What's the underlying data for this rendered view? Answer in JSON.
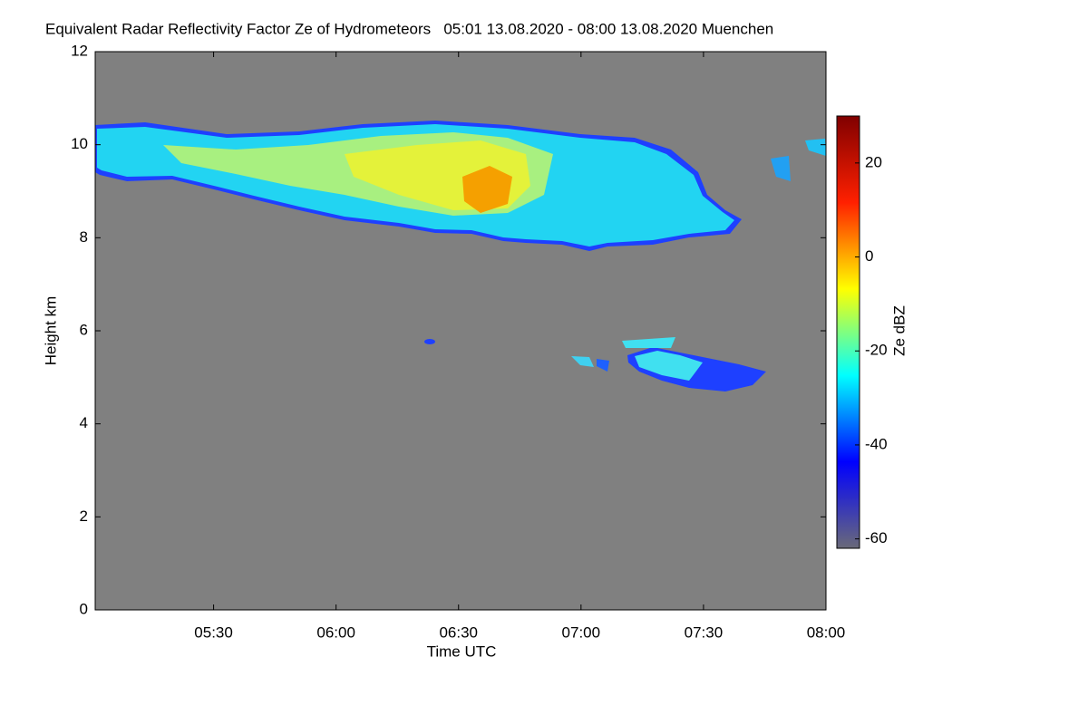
{
  "chart_data": {
    "type": "heatmap",
    "title": "Equivalent Radar Reflectivity Factor Ze of Hydrometeors   05:01 13.08.2020 - 08:00 13.08.2020 Muenchen",
    "x_label": "Time UTC",
    "y_label": "Height km",
    "xlim": [
      301,
      480
    ],
    "xticks": [
      {
        "value": 330,
        "label": "05:30"
      },
      {
        "value": 360,
        "label": "06:00"
      },
      {
        "value": 390,
        "label": "06:30"
      },
      {
        "value": 420,
        "label": "07:00"
      },
      {
        "value": 450,
        "label": "07:30"
      },
      {
        "value": 480,
        "label": "08:00"
      }
    ],
    "ylim": [
      0,
      12
    ],
    "yticks": [
      0,
      2,
      4,
      6,
      8,
      10,
      12
    ],
    "background": "#808080",
    "colorbar": {
      "label": "Ze dBZ",
      "lim": [
        -62,
        30
      ],
      "ticks": [
        -60,
        -40,
        -20,
        0,
        20
      ],
      "colors": [
        "#6a6a78",
        "#0000ff",
        "#00ffff",
        "#ffff00",
        "#ff2000",
        "#800000"
      ]
    }
  }
}
